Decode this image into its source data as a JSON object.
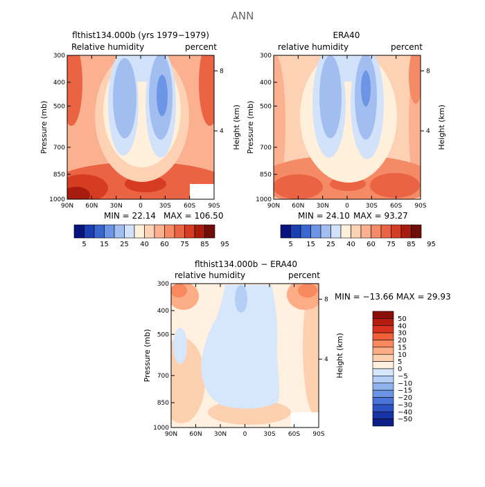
{
  "figure": {
    "title": "ANN"
  },
  "chart_data": [
    {
      "type": "heatmap",
      "panel": "model",
      "title": "flthist134.000b (yrs 1979−1979)",
      "left_label": "Relative humidity",
      "right_label": "percent",
      "ylabel": "Pressure (mb)",
      "y2label": "Height (km)",
      "x_ticks": [
        "90N",
        "60N",
        "30N",
        "0",
        "30S",
        "60S",
        "90S"
      ],
      "y_ticks": [
        "300",
        "400",
        "500",
        "700",
        "850",
        "1000"
      ],
      "y2_ticks": [
        "8",
        "4"
      ],
      "min_text": "MIN =   22.14",
      "max_text": "MAX =  106.50",
      "colorbar": {
        "labels": [
          "5",
          "15",
          "25",
          "40",
          "60",
          "75",
          "85",
          "95"
        ],
        "colors": [
          "#08147e",
          "#1b3fb0",
          "#3a66d0",
          "#6c95e6",
          "#a2bdf0",
          "#d2e2fa",
          "#fff0dc",
          "#fdd2b4",
          "#fbb090",
          "#f48a66",
          "#ea6444",
          "#d63c22",
          "#a81c10",
          "#6e0e08"
        ]
      }
    },
    {
      "type": "heatmap",
      "panel": "obs",
      "title": "ERA40",
      "left_label": "relative humidity",
      "right_label": "percent",
      "ylabel": "Pressure (mb)",
      "y2label": "Height (km)",
      "x_ticks": [
        "90N",
        "60N",
        "30N",
        "0",
        "30S",
        "60S",
        "90S"
      ],
      "y_ticks": [
        "300",
        "400",
        "500",
        "700",
        "850",
        "1000"
      ],
      "y2_ticks": [
        "8",
        "4"
      ],
      "min_text": "MIN =   24.10",
      "max_text": "MAX =   93.27",
      "colorbar": {
        "labels": [
          "5",
          "15",
          "25",
          "40",
          "60",
          "75",
          "85",
          "95"
        ],
        "colors": [
          "#08147e",
          "#1b3fb0",
          "#3a66d0",
          "#6c95e6",
          "#a2bdf0",
          "#d2e2fa",
          "#fff0dc",
          "#fdd2b4",
          "#fbb090",
          "#f48a66",
          "#ea6444",
          "#d63c22",
          "#a81c10",
          "#6e0e08"
        ]
      }
    },
    {
      "type": "heatmap",
      "panel": "diff",
      "title": "flthist134.000b − ERA40",
      "left_label": "relative humidity",
      "right_label": "percent",
      "ylabel": "Pressure (mb)",
      "y2label": "Height (km)",
      "x_ticks": [
        "90N",
        "60N",
        "30N",
        "0",
        "30S",
        "60S",
        "90S"
      ],
      "y_ticks": [
        "300",
        "400",
        "500",
        "700",
        "850",
        "1000"
      ],
      "y2_ticks": [
        "8",
        "4"
      ],
      "min_max_text": "MIN = −13.66   MAX =   29.93",
      "colorbar": {
        "labels": [
          "50",
          "40",
          "30",
          "20",
          "15",
          "10",
          "5",
          "0",
          "−5",
          "−10",
          "−15",
          "−20",
          "−30",
          "−40",
          "−50"
        ],
        "colors": [
          "#8a0f0a",
          "#b51c10",
          "#d8321e",
          "#f0603a",
          "#f8885e",
          "#fcad86",
          "#fdd0b0",
          "#fff0e0",
          "#d6e6fb",
          "#b4cef5",
          "#90b2ee",
          "#6c94e4",
          "#4a74d8",
          "#2c52c4",
          "#1634a4",
          "#0a1e86"
        ]
      }
    }
  ]
}
